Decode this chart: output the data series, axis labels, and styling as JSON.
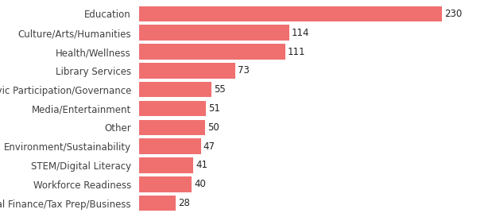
{
  "categories": [
    "Personal Finance/Tax Prep/Business",
    "Workforce Readiness",
    "STEM/Digital Literacy",
    "Environment/Sustainability",
    "Other",
    "Media/Entertainment",
    "Civic Participation/Governance",
    "Library Services",
    "Health/Wellness",
    "Culture/Arts/Humanities",
    "Education"
  ],
  "values": [
    28,
    40,
    41,
    47,
    50,
    51,
    55,
    73,
    111,
    114,
    230
  ],
  "bar_color": "#F07070",
  "label_color": "#404040",
  "value_color": "#222222",
  "background_color": "#ffffff",
  "bar_height": 0.82,
  "xlim": [
    0,
    260
  ],
  "value_fontsize": 8.5,
  "label_fontsize": 8.5
}
